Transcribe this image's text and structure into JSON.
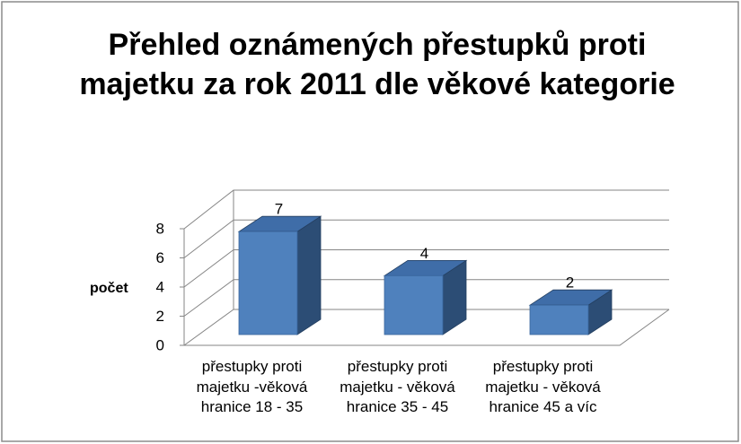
{
  "chart_data": {
    "type": "bar3d",
    "title": "Přehled oznámených přestupků proti majetku za rok 2011 dle věkové kategorie",
    "ylabel": "počet",
    "categories": [
      "přestupky proti majetku -věková hranice 18 - 35",
      "přestupky proti majetku - věková hranice 35 - 45",
      "přestupky proti majetku - věková hranice 45 a víc"
    ],
    "values": [
      7,
      4,
      2
    ],
    "color": "#4f81bd",
    "ylim": [
      0,
      8
    ],
    "yticks": [
      0,
      2,
      4,
      6,
      8
    ],
    "grid": true
  }
}
